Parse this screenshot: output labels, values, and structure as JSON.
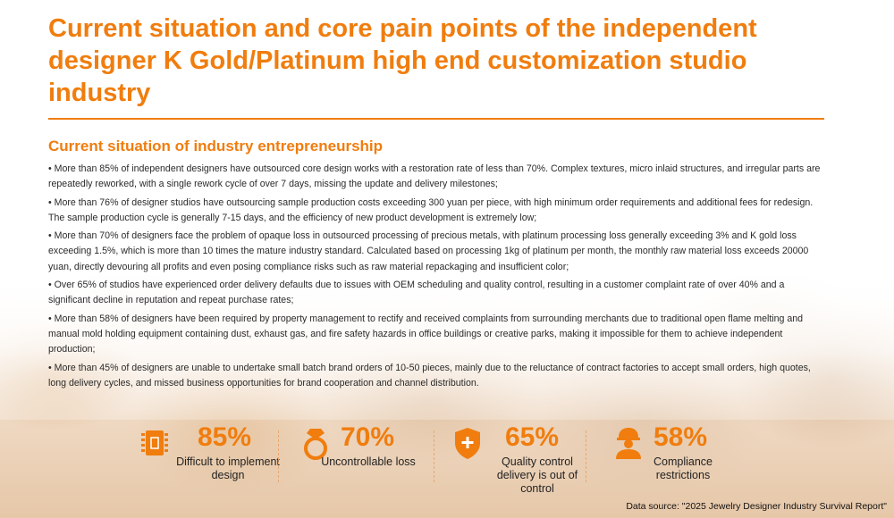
{
  "title": "Current situation and core pain points of the independent designer K Gold/Platinum high end customization studio industry",
  "subtitle": "Current situation of industry entrepreneurship",
  "bullets": [
    "• More than 85% of independent designers have outsourced core design works with a restoration rate of less than 70%. Complex textures, micro inlaid structures, and irregular parts are repeatedly reworked, with a single rework cycle of over 7 days, missing the update and delivery milestones;",
    "• More than 76% of designer studios have outsourcing sample production costs exceeding 300 yuan per piece, with high minimum order requirements and additional fees for redesign. The sample production cycle is generally 7-15 days, and the efficiency of new product development is extremely low;",
    "• More than 70% of designers face the problem of opaque loss in outsourced processing of precious metals, with platinum processing loss generally exceeding 3% and K gold loss exceeding 1.5%, which is more than 10 times the mature industry standard. Calculated based on processing 1kg of platinum per month, the monthly raw material loss exceeds 20000 yuan, directly devouring all profits and even posing compliance risks such as raw material repackaging and insufficient color;",
    "• Over 65% of studios have experienced order delivery defaults due to issues with OEM scheduling and quality control, resulting in a customer complaint rate of over 40% and a significant decline in reputation and repeat purchase rates;",
    "• More than 58% of designers have been required by property management to rectify and received complaints from surrounding merchants due to traditional open flame melting and manual mold holding equipment containing dust, exhaust gas, and fire safety hazards in office buildings or creative parks, making it impossible for them to achieve independent production;",
    "• More than 45% of designers are unable to undertake small batch brand orders of 10-50 pieces, mainly due to the reluctance of contract factories to accept small orders, high quotes, long delivery cycles, and missed business opportunities for brand cooperation and channel distribution."
  ],
  "stats": [
    {
      "value": "85%",
      "label": "Difficult to implement design",
      "icon": "chip-icon"
    },
    {
      "value": "70%",
      "label": "Uncontrollable loss",
      "icon": "ring-icon"
    },
    {
      "value": "65%",
      "label": "Quality control delivery is out of control",
      "icon": "shield-plus-icon"
    },
    {
      "value": "58%",
      "label": "Compliance restrictions",
      "icon": "worker-icon"
    }
  ],
  "source": "Data source: \"2025 Jewelry Designer Industry Survival Report\"",
  "colors": {
    "accent": "#f07d0e",
    "text": "#2a2a2a"
  }
}
